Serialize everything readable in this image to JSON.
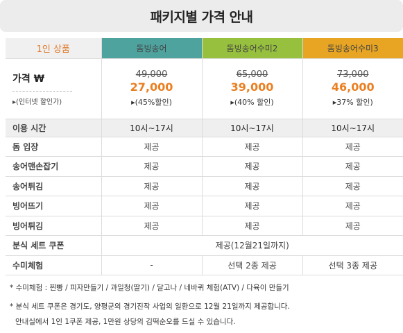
{
  "title": "패키지별 가격 안내",
  "header": {
    "first": "1인 상품",
    "packages": [
      "돔빙송어",
      "돔빙송어수미2",
      "돔빙송어수미3"
    ]
  },
  "price": {
    "label": "가격 ₩",
    "sub_label": "▸(인터넷 할인가)",
    "items": [
      {
        "old": "49,000",
        "new": "27,000",
        "discount": "▸(45%할인)"
      },
      {
        "old": "65,000",
        "new": "39,000",
        "discount": "▸(40% 할인)"
      },
      {
        "old": "73,000",
        "new": "46,000",
        "discount": "▸37% 할인)"
      }
    ]
  },
  "time": {
    "label": "이용 시간",
    "values": [
      "10시~17시",
      "10시~17시",
      "10시~17시"
    ]
  },
  "rows": [
    {
      "label": "돔 입장",
      "values": [
        "제공",
        "제공",
        "제공"
      ]
    },
    {
      "label": "송어맨손잡기",
      "values": [
        "제공",
        "제공",
        "제공"
      ]
    },
    {
      "label": "송어튀김",
      "values": [
        "제공",
        "제공",
        "제공"
      ]
    },
    {
      "label": "빙어뜨기",
      "values": [
        "제공",
        "제공",
        "제공"
      ]
    },
    {
      "label": "빙어튀김",
      "values": [
        "제공",
        "제공",
        "제공"
      ]
    }
  ],
  "coupon": {
    "label": "분식 세트 쿠폰",
    "value": "제공(12월21일까지)"
  },
  "sumi": {
    "label": "수미체험",
    "values": [
      "-",
      "선택 2종 제공",
      "선택 3종 제공"
    ]
  },
  "notes": {
    "line1": "* 수미체험 :  찐빵 /  피자만들기 / 과일청(딸기) / 달고나 / 네바퀴 체험(ATV) / 다육이 만들기",
    "line2": "* 분식 세트 쿠폰은 경기도, 양평군의 경기진작 사업의 일환으로 12월 21일까지 제공합니다.",
    "line3": "안내실에서 1인 1쿠폰 제공,  1만원 상당의 김떡순오를 드실 수 있습니다."
  },
  "colors": {
    "col1": "#4ea39f",
    "col2": "#97c03e",
    "col3": "#e8a523",
    "accent": "#ea7f21"
  }
}
